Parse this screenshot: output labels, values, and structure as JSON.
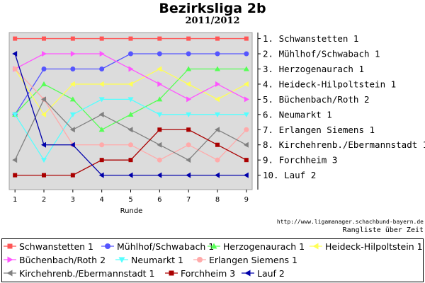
{
  "header": {
    "title": "Bezirksliga 2b",
    "subtitle": "2011/2012"
  },
  "footer": {
    "source_url": "http://www.ligamanager.schachbund-bayern.de",
    "caption": "Rangliste über Zeit"
  },
  "chart_data": {
    "type": "line",
    "xlabel": "Runde",
    "ylabel": "",
    "x": [
      1,
      2,
      3,
      4,
      5,
      6,
      7,
      8,
      9
    ],
    "xlim": [
      0.8,
      9.2
    ],
    "ylim": [
      10.95,
      0.6
    ],
    "y_inverted": true,
    "grid": false,
    "legend_placement": "bottom",
    "rank_labels": [
      "1. Schwanstetten 1",
      "2. Mühlhof/Schwabach 1",
      "3. Herzogenaurach 1",
      "4. Heideck-Hilpoltstein 1",
      "5. Büchenbach/Roth 2",
      "6. Neumarkt 1",
      "7. Erlangen Siemens 1",
      "8. Kirchehrenb./Ebermannstadt 1",
      "9. Forchheim 3",
      "10. Lauf 2"
    ],
    "series": [
      {
        "name": "Schwanstetten 1",
        "color": "#ff5555",
        "marker": "square",
        "values": [
          1,
          1,
          1,
          1,
          1,
          1,
          1,
          1,
          1
        ]
      },
      {
        "name": "Mühlhof/Schwabach 1",
        "color": "#5555ff",
        "marker": "circle",
        "values": [
          6,
          3,
          3,
          3,
          2,
          2,
          2,
          2,
          2
        ]
      },
      {
        "name": "Herzogenaurach 1",
        "color": "#55ff55",
        "marker": "triangle-up",
        "values": [
          6,
          4,
          5,
          7,
          6,
          5,
          3,
          3,
          3
        ]
      },
      {
        "name": "Heideck-Hilpoltstein 1",
        "color": "#ffff55",
        "marker": "triangle-left",
        "values": [
          3,
          6,
          4,
          4,
          4,
          3,
          4,
          5,
          4
        ]
      },
      {
        "name": "Büchenbach/Roth 2",
        "color": "#ff55ff",
        "marker": "triangle-right",
        "values": [
          3,
          2,
          2,
          2,
          3,
          4,
          5,
          4,
          5
        ]
      },
      {
        "name": "Neumarkt 1",
        "color": "#55ffff",
        "marker": "triangle-down",
        "values": [
          6,
          9,
          6,
          5,
          5,
          6,
          6,
          6,
          6
        ]
      },
      {
        "name": "Erlangen Siemens 1",
        "color": "#ffaaaa",
        "marker": "circle",
        "values": [
          3,
          5,
          8,
          8,
          8,
          9,
          8,
          9,
          7
        ]
      },
      {
        "name": "Kirchehrenb./Ebermannstadt 1",
        "color": "#808080",
        "marker": "triangle-left",
        "values": [
          9,
          5,
          7,
          6,
          7,
          8,
          9,
          7,
          8
        ]
      },
      {
        "name": "Forchheim 3",
        "color": "#aa0000",
        "marker": "square",
        "values": [
          10,
          10,
          10,
          9,
          9,
          7,
          7,
          8,
          9
        ]
      },
      {
        "name": "Lauf 2",
        "color": "#0000aa",
        "marker": "triangle-left",
        "values": [
          2,
          8,
          8,
          10,
          10,
          10,
          10,
          10,
          10
        ]
      }
    ]
  }
}
